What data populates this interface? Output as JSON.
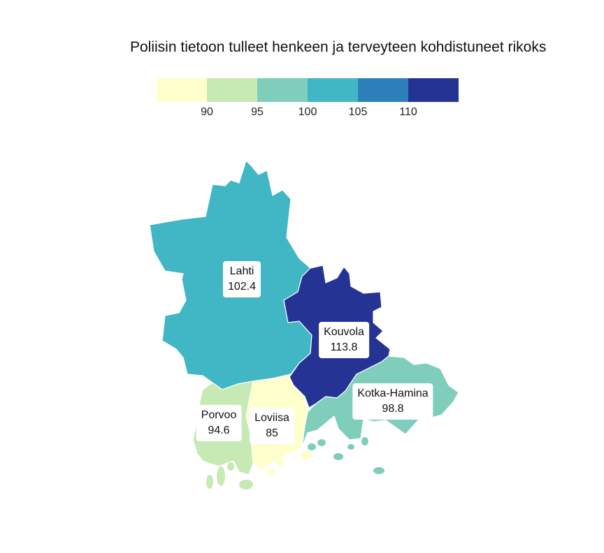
{
  "title": "Poliisin tietoon tulleet henkeen ja terveyteen kohdistuneet rikoks",
  "legend": {
    "colors": [
      "#ffffcc",
      "#c7e9b4",
      "#7fcdbb",
      "#41b6c4",
      "#2c7fb8",
      "#253494"
    ],
    "ticks": [
      "90",
      "95",
      "100",
      "105",
      "110"
    ]
  },
  "regions": [
    {
      "id": "lahti",
      "name": "Lahti",
      "value": "102.4",
      "color": "#41b6c4"
    },
    {
      "id": "kouvola",
      "name": "Kouvola",
      "value": "113.8",
      "color": "#253494"
    },
    {
      "id": "kotka-hamina",
      "name": "Kotka-Hamina",
      "value": "98.8",
      "color": "#7fcdbb"
    },
    {
      "id": "porvoo",
      "name": "Porvoo",
      "value": "94.6",
      "color": "#c7e9b4"
    },
    {
      "id": "loviisa",
      "name": "Loviisa",
      "value": "85",
      "color": "#ffffcc"
    }
  ]
}
